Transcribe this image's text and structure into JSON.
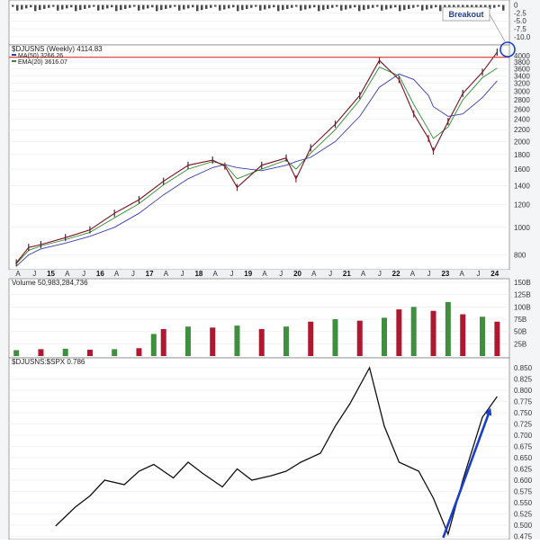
{
  "chart_data": [
    {
      "type": "line",
      "panel": "oscillator",
      "yticks": [
        "0",
        "-2.5",
        "-5.0",
        "-7.5",
        "-10.0"
      ],
      "ylim": [
        -12,
        1
      ]
    },
    {
      "type": "line",
      "panel": "price",
      "title": "$DJUSNS (Weekly) 4114.83",
      "legend": [
        {
          "text": "MA(50) 3266.26",
          "color": "#3a3ab8"
        },
        {
          "text": "EMA(20) 3616.07",
          "color": "#2e8b2e"
        }
      ],
      "callout": "Breakout",
      "resistance_level": 3950,
      "yscale": "log",
      "ylim": [
        720,
        4300
      ],
      "yticks": [
        "4000",
        "3800",
        "3600",
        "3400",
        "3200",
        "3000",
        "2800",
        "2600",
        "2400",
        "2200",
        "2000",
        "1800",
        "1600",
        "1400",
        "1200",
        "1000",
        "800"
      ],
      "x_month_labels": [
        "A",
        "J",
        "15",
        "A",
        "J",
        "16",
        "A",
        "J",
        "17",
        "A",
        "J",
        "18",
        "A",
        "J",
        "19",
        "A",
        "J",
        "20",
        "A",
        "J",
        "21",
        "A",
        "J",
        "22",
        "A",
        "J",
        "23",
        "A",
        "J",
        "24"
      ],
      "x": [
        2014.5,
        2014.75,
        2015.0,
        2015.5,
        2016.0,
        2016.5,
        2017.0,
        2017.5,
        2018.0,
        2018.5,
        2018.75,
        2019.0,
        2019.5,
        2020.0,
        2020.2,
        2020.5,
        2021.0,
        2021.5,
        2021.9,
        2022.3,
        2022.6,
        2022.9,
        2023.0,
        2023.3,
        2023.6,
        2024.0,
        2024.3
      ],
      "close": [
        750,
        850,
        870,
        920,
        980,
        1120,
        1250,
        1450,
        1650,
        1720,
        1640,
        1380,
        1650,
        1750,
        1480,
        1900,
        2300,
        2900,
        3850,
        3300,
        2500,
        2050,
        1850,
        2350,
        2950,
        3500,
        4115
      ],
      "ma50": [
        730,
        800,
        840,
        880,
        930,
        1000,
        1120,
        1300,
        1480,
        1620,
        1660,
        1620,
        1580,
        1650,
        1700,
        1760,
        2000,
        2450,
        3100,
        3450,
        3300,
        2900,
        2650,
        2450,
        2500,
        2850,
        3266
      ],
      "ema20": [
        745,
        830,
        860,
        905,
        960,
        1080,
        1210,
        1410,
        1600,
        1700,
        1660,
        1480,
        1600,
        1720,
        1600,
        1820,
        2200,
        2800,
        3650,
        3400,
        2700,
        2200,
        2050,
        2250,
        2800,
        3350,
        3616
      ]
    },
    {
      "type": "bar",
      "panel": "volume",
      "title": "Volume 50,983,284,736",
      "yticks": [
        "150B",
        "125B",
        "100B",
        "75B",
        "50B",
        "25B"
      ],
      "ylim": [
        0,
        150
      ],
      "x": [
        2014.5,
        2015.0,
        2015.5,
        2016.0,
        2016.5,
        2017.0,
        2017.3,
        2017.5,
        2018.0,
        2018.5,
        2019.0,
        2019.5,
        2020.0,
        2020.5,
        2021.0,
        2021.5,
        2022.0,
        2022.3,
        2022.6,
        2023.0,
        2023.3,
        2023.6,
        2024.0,
        2024.3
      ],
      "values": [
        12,
        14,
        15,
        13,
        14,
        16,
        45,
        55,
        60,
        58,
        62,
        55,
        60,
        70,
        75,
        72,
        78,
        95,
        100,
        92,
        110,
        85,
        80,
        70
      ]
    },
    {
      "type": "line",
      "panel": "ratio",
      "title": "$DJUSNS:$SPX 0.786",
      "yticks": [
        "0.850",
        "0.825",
        "0.800",
        "0.775",
        "0.750",
        "0.725",
        "0.700",
        "0.675",
        "0.650",
        "0.625",
        "0.600",
        "0.575",
        "0.550",
        "0.525",
        "0.500",
        "0.475"
      ],
      "ylim": [
        0.468,
        0.868
      ],
      "x": [
        2015.3,
        2015.7,
        2016.0,
        2016.3,
        2016.7,
        2017.0,
        2017.3,
        2017.7,
        2018.0,
        2018.3,
        2018.7,
        2019.0,
        2019.3,
        2019.7,
        2020.0,
        2020.3,
        2020.7,
        2021.0,
        2021.3,
        2021.7,
        2022.0,
        2022.3,
        2022.7,
        2023.0,
        2023.3,
        2023.6,
        2024.0,
        2024.3
      ],
      "values": [
        0.498,
        0.54,
        0.565,
        0.6,
        0.59,
        0.62,
        0.635,
        0.605,
        0.64,
        0.615,
        0.585,
        0.625,
        0.6,
        0.61,
        0.62,
        0.64,
        0.66,
        0.72,
        0.77,
        0.85,
        0.72,
        0.64,
        0.62,
        0.56,
        0.48,
        0.6,
        0.74,
        0.786
      ],
      "trend_arrow": {
        "x": [
          2023.2,
          2024.15
        ],
        "y": [
          0.465,
          0.755
        ],
        "color": "#1a3fc9"
      }
    }
  ]
}
